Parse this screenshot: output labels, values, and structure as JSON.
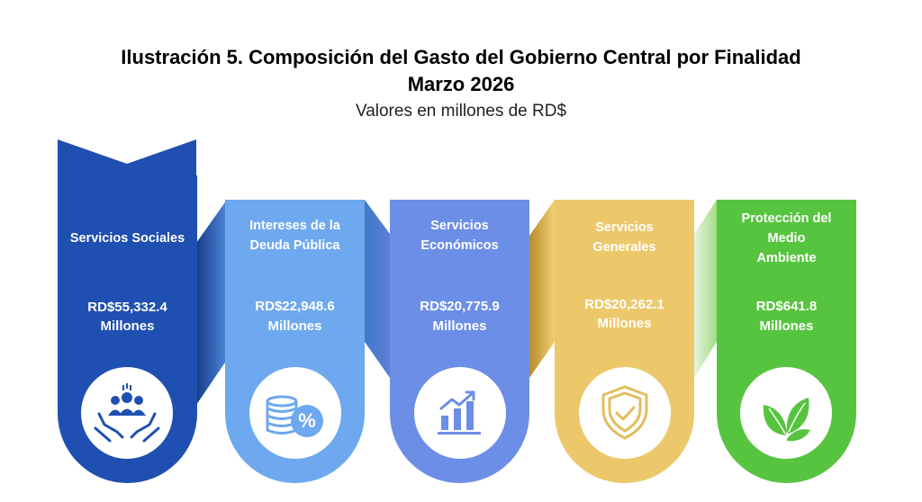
{
  "title_line1": "Ilustración 5. Composición del Gasto del Gobierno Central por Finalidad",
  "title_line2": "Marzo 2026",
  "subtitle": "Valores en millones de RD$",
  "items": [
    {
      "name1": "Servicios Sociales",
      "name2": "",
      "name3": "",
      "amount": "RD$55,332.4",
      "unit": "Millones",
      "icon": "people-in-hands-icon",
      "color": "#1f4fb0"
    },
    {
      "name1": "Intereses de la",
      "name2": "Deuda Pública",
      "name3": "",
      "amount": "RD$22,948.6",
      "unit": "Millones",
      "icon": "coins-percent-icon",
      "color": "#6ea8ee"
    },
    {
      "name1": "Servicios",
      "name2": "Económicos",
      "name3": "",
      "amount": "RD$20,775.9",
      "unit": "Millones",
      "icon": "growth-chart-icon",
      "color": "#6c8ee6"
    },
    {
      "name1": "Servicios",
      "name2": "Generales",
      "name3": "",
      "amount": "RD$20,262.1",
      "unit": "Millones",
      "icon": "shield-check-icon",
      "color": "#ecc86a"
    },
    {
      "name1": "Protección del",
      "name2": "Medio",
      "name3": "Ambiente",
      "amount": "RD$641.8",
      "unit": "Millones",
      "icon": "leaves-icon",
      "color": "#57c43f"
    }
  ]
}
